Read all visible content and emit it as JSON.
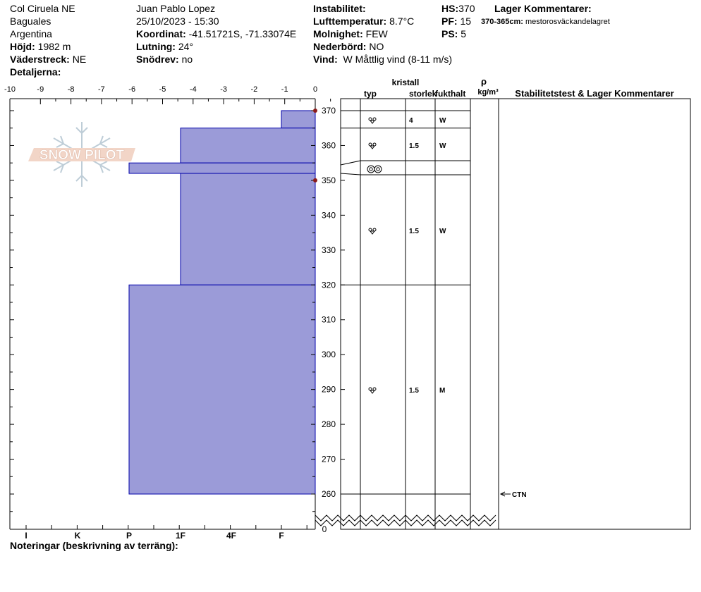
{
  "header": {
    "site": "Col Ciruela NE",
    "region": "Baguales",
    "country": "Argentina",
    "elevation_label": "Höjd:",
    "elevation": "1982 m",
    "aspect_label": "Väderstreck:",
    "aspect": "NE",
    "details_label": "Detaljerna:",
    "observer": "Juan Pablo  Lopez",
    "datetime": "25/10/2023 - 15:30",
    "coord_label": "Koordinat:",
    "coord": "-41.51721S, -71.33074E",
    "slope_label": "Lutning:",
    "slope": "24°",
    "drift_label": "Snödrev:",
    "drift": "no",
    "instab_label": "Instabilitet:",
    "airtemp_label": "Lufttemperatur:",
    "airtemp": "8.7°C",
    "sky_label": "Molnighet:",
    "sky": "FEW",
    "precip_label": "Nederbörd:",
    "precip": "NO",
    "wind_label": "Vind:",
    "wind": "W Måttlig vind (8-11 m/s)",
    "hs_label": "HS:",
    "hs": "370",
    "pf_label": "PF:",
    "pf": "15",
    "ps_label": "PS:",
    "ps": "5",
    "layer_comments_label": "Lager Kommentarer:",
    "layer_comment_range": "370-365cm:",
    "layer_comment_text": "mestorosväckandelagret"
  },
  "watermark": "SNOW PILOT",
  "columns": {
    "crystal": "kristall",
    "type": "typ",
    "size": "storlek",
    "moisture": "fukthalt",
    "rho": "ρ",
    "density_unit": "kg/m³",
    "stability": "Stabilitetstest & Lager Kommentarer"
  },
  "notes_label": "Noteringar (beskrivning av terräng):",
  "chart_data": {
    "type": "bar",
    "orientation": "horizontal",
    "temperature_axis": {
      "ticks": [
        "-10",
        "-9",
        "-8",
        "-7",
        "-6",
        "-5",
        "-4",
        "-3",
        "-2",
        "-1",
        "0"
      ],
      "range": [
        -10,
        0
      ]
    },
    "hardness_axis": {
      "ticks": [
        "I",
        "K",
        "P",
        "1F",
        "4F",
        "F"
      ]
    },
    "height_axis": {
      "range": [
        250,
        370
      ],
      "ticks": [
        "370",
        "360",
        "350",
        "340",
        "330",
        "320",
        "310",
        "300",
        "290",
        "280",
        "270",
        "260"
      ],
      "zero_label": "0"
    },
    "layers": [
      {
        "top": 370,
        "bottom": 365,
        "hardness": "F"
      },
      {
        "top": 365,
        "bottom": 355,
        "hardness": "1F"
      },
      {
        "top": 355,
        "bottom": 352,
        "hardness": "P"
      },
      {
        "top": 352,
        "bottom": 320,
        "hardness": "1F"
      },
      {
        "top": 320,
        "bottom": 260,
        "hardness": "P"
      }
    ],
    "temperature_points": [
      {
        "height": 370,
        "temp": 0
      },
      {
        "height": 350,
        "temp": 0
      }
    ],
    "layer_table": [
      {
        "top": 370,
        "bottom": 365,
        "grain": "rounding-faceted",
        "size": "4",
        "moisture": "W"
      },
      {
        "top": 365,
        "bottom": 355,
        "grain": "rounding-faceted",
        "size": "1.5",
        "moisture": "W"
      },
      {
        "top": 355,
        "bottom": 352,
        "grain": "melt-freeze",
        "size": "",
        "moisture": ""
      },
      {
        "top": 352,
        "bottom": 320,
        "grain": "rounding-faceted",
        "size": "1.5",
        "moisture": "W"
      },
      {
        "top": 320,
        "bottom": 260,
        "grain": "rounding-faceted",
        "size": "1.5",
        "moisture": "M"
      }
    ],
    "stability_tests": [
      {
        "height": 260,
        "label": "CTN"
      }
    ],
    "bar_color": "#9b9bd8",
    "bar_stroke": "#0000aa",
    "temp_color": "#8b1a1a"
  }
}
